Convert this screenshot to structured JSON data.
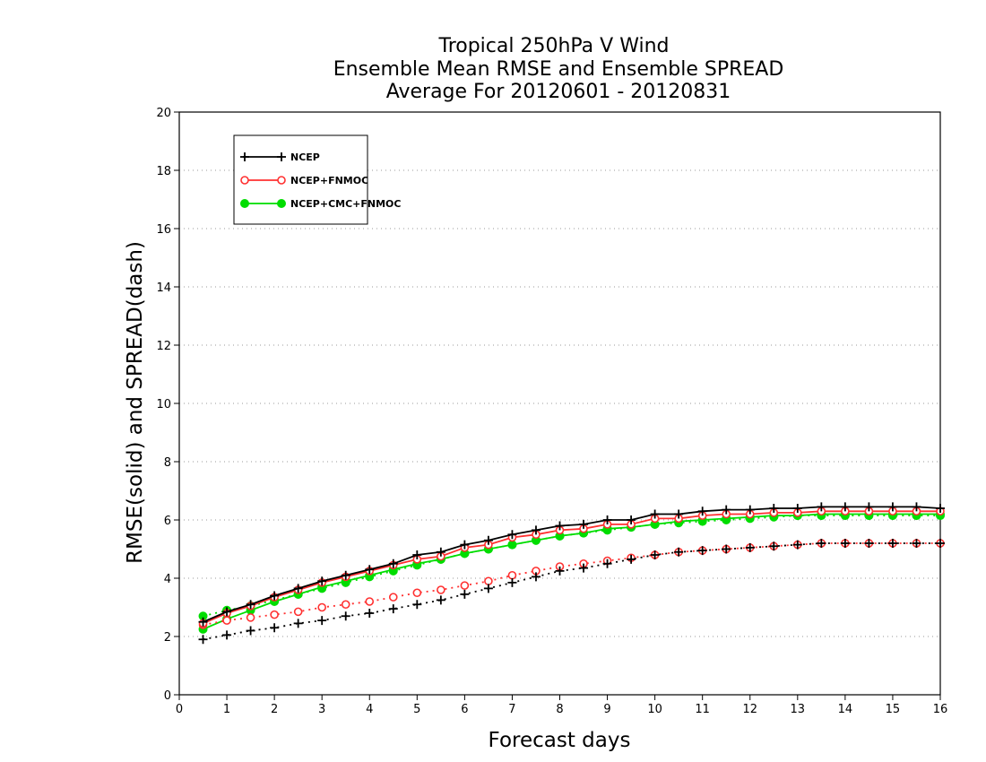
{
  "chart_data": {
    "type": "line",
    "title_lines": [
      "Tropical 250hPa V Wind",
      "Ensemble Mean RMSE and Ensemble SPREAD",
      "Average For 20120601 - 20120831"
    ],
    "xlabel": "Forecast days",
    "ylabel": "RMSE(solid) and SPREAD(dash)",
    "xlim": [
      0,
      16
    ],
    "ylim": [
      0,
      20
    ],
    "xticks": [
      "0",
      "1",
      "2",
      "3",
      "4",
      "5",
      "6",
      "7",
      "8",
      "9",
      "10",
      "11",
      "12",
      "13",
      "14",
      "15",
      "16"
    ],
    "yticks": [
      "0",
      "2",
      "4",
      "6",
      "8",
      "10",
      "12",
      "14",
      "16",
      "18",
      "20"
    ],
    "grid": "horizontal dotted",
    "legend_position": "top-left",
    "x": [
      0.5,
      1,
      1.5,
      2,
      2.5,
      3,
      3.5,
      4,
      4.5,
      5,
      5.5,
      6,
      6.5,
      7,
      7.5,
      8,
      8.5,
      9,
      9.5,
      10,
      10.5,
      11,
      11.5,
      12,
      12.5,
      13,
      13.5,
      14,
      14.5,
      15,
      15.5,
      16
    ],
    "series": [
      {
        "name": "NCEP",
        "color": "#000000",
        "marker": "plus",
        "rmse": [
          2.5,
          2.85,
          3.1,
          3.4,
          3.65,
          3.9,
          4.1,
          4.3,
          4.5,
          4.8,
          4.9,
          5.15,
          5.3,
          5.5,
          5.65,
          5.8,
          5.85,
          6.0,
          6.0,
          6.2,
          6.2,
          6.3,
          6.35,
          6.35,
          6.4,
          6.4,
          6.45,
          6.45,
          6.45,
          6.45,
          6.45,
          6.4
        ],
        "spread": [
          1.9,
          2.05,
          2.2,
          2.3,
          2.45,
          2.55,
          2.7,
          2.8,
          2.95,
          3.1,
          3.25,
          3.45,
          3.65,
          3.85,
          4.05,
          4.25,
          4.35,
          4.5,
          4.65,
          4.8,
          4.9,
          4.95,
          5.0,
          5.05,
          5.1,
          5.15,
          5.2,
          5.2,
          5.2,
          5.2,
          5.2,
          5.2
        ]
      },
      {
        "name": "NCEP+FNMOC",
        "color": "#ff3030",
        "marker": "open-circle",
        "rmse": [
          2.45,
          2.8,
          3.05,
          3.35,
          3.6,
          3.85,
          4.05,
          4.25,
          4.45,
          4.65,
          4.75,
          5.05,
          5.15,
          5.4,
          5.5,
          5.65,
          5.7,
          5.85,
          5.85,
          6.05,
          6.05,
          6.15,
          6.2,
          6.2,
          6.25,
          6.25,
          6.3,
          6.3,
          6.3,
          6.3,
          6.3,
          6.3
        ],
        "spread": [
          2.4,
          2.55,
          2.65,
          2.75,
          2.85,
          3.0,
          3.1,
          3.2,
          3.35,
          3.5,
          3.6,
          3.75,
          3.9,
          4.1,
          4.25,
          4.4,
          4.5,
          4.6,
          4.7,
          4.8,
          4.9,
          4.95,
          5.0,
          5.05,
          5.1,
          5.15,
          5.2,
          5.2,
          5.2,
          5.2,
          5.2,
          5.2
        ]
      },
      {
        "name": "NCEP+CMC+FNMOC",
        "color": "#00dd00",
        "marker": "filled-circle",
        "rmse": [
          2.25,
          2.6,
          2.9,
          3.2,
          3.45,
          3.7,
          3.9,
          4.1,
          4.3,
          4.5,
          4.65,
          4.85,
          5.0,
          5.15,
          5.3,
          5.45,
          5.55,
          5.7,
          5.75,
          5.85,
          5.95,
          6.0,
          6.05,
          6.1,
          6.15,
          6.15,
          6.2,
          6.2,
          6.2,
          6.2,
          6.2,
          6.2
        ],
        "spread": [
          2.7,
          2.9,
          3.05,
          3.25,
          3.45,
          3.65,
          3.85,
          4.05,
          4.25,
          4.45,
          4.65,
          4.85,
          5.0,
          5.15,
          5.3,
          5.45,
          5.55,
          5.65,
          5.75,
          5.85,
          5.9,
          5.95,
          6.0,
          6.05,
          6.1,
          6.15,
          6.15,
          6.15,
          6.15,
          6.15,
          6.15,
          6.15
        ]
      }
    ]
  }
}
